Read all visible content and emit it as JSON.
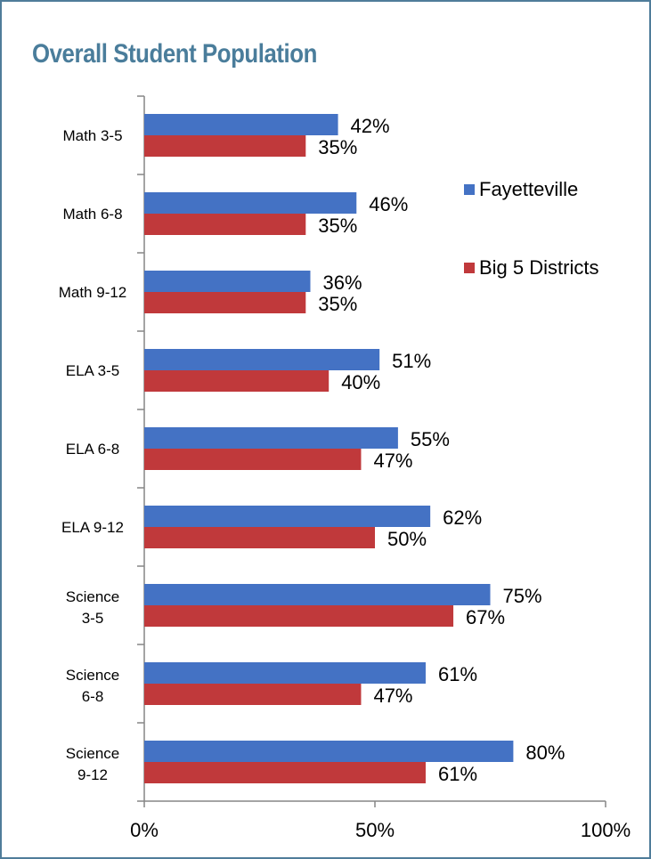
{
  "page": {
    "title": "Overall Student Population"
  },
  "colors": {
    "frame": "#4f7c9a",
    "title": "#4a7d9b"
  },
  "chart_data": {
    "type": "bar",
    "orientation": "horizontal",
    "title": "Overall Student Population",
    "categories": [
      "Math 3-5",
      "Math 6-8",
      "Math 9-12",
      "ELA 3-5",
      "ELA 6-8",
      "ELA 9-12",
      "Science 3-5",
      "Science 6-8",
      "Science 9-12"
    ],
    "series": [
      {
        "name": "Fayetteville",
        "color": "#4472c4",
        "values": [
          42,
          46,
          36,
          51,
          55,
          62,
          75,
          61,
          80
        ],
        "labels": [
          "42%",
          "46%",
          "36%",
          "51%",
          "55%",
          "62%",
          "75%",
          "61%",
          "80%"
        ]
      },
      {
        "name": "Big 5 Districts",
        "color": "#c0393b",
        "values": [
          35,
          35,
          35,
          40,
          47,
          50,
          67,
          47,
          61
        ],
        "labels": [
          "35%",
          "35%",
          "35%",
          "40%",
          "47%",
          "50%",
          "67%",
          "47%",
          "61%"
        ]
      }
    ],
    "xlim": [
      0,
      100
    ],
    "xticks": [
      0,
      50,
      100
    ],
    "xtick_labels": [
      "0%",
      "50%",
      "100%"
    ],
    "xlabel": "",
    "ylabel": "",
    "grid": false,
    "legend": "right"
  }
}
